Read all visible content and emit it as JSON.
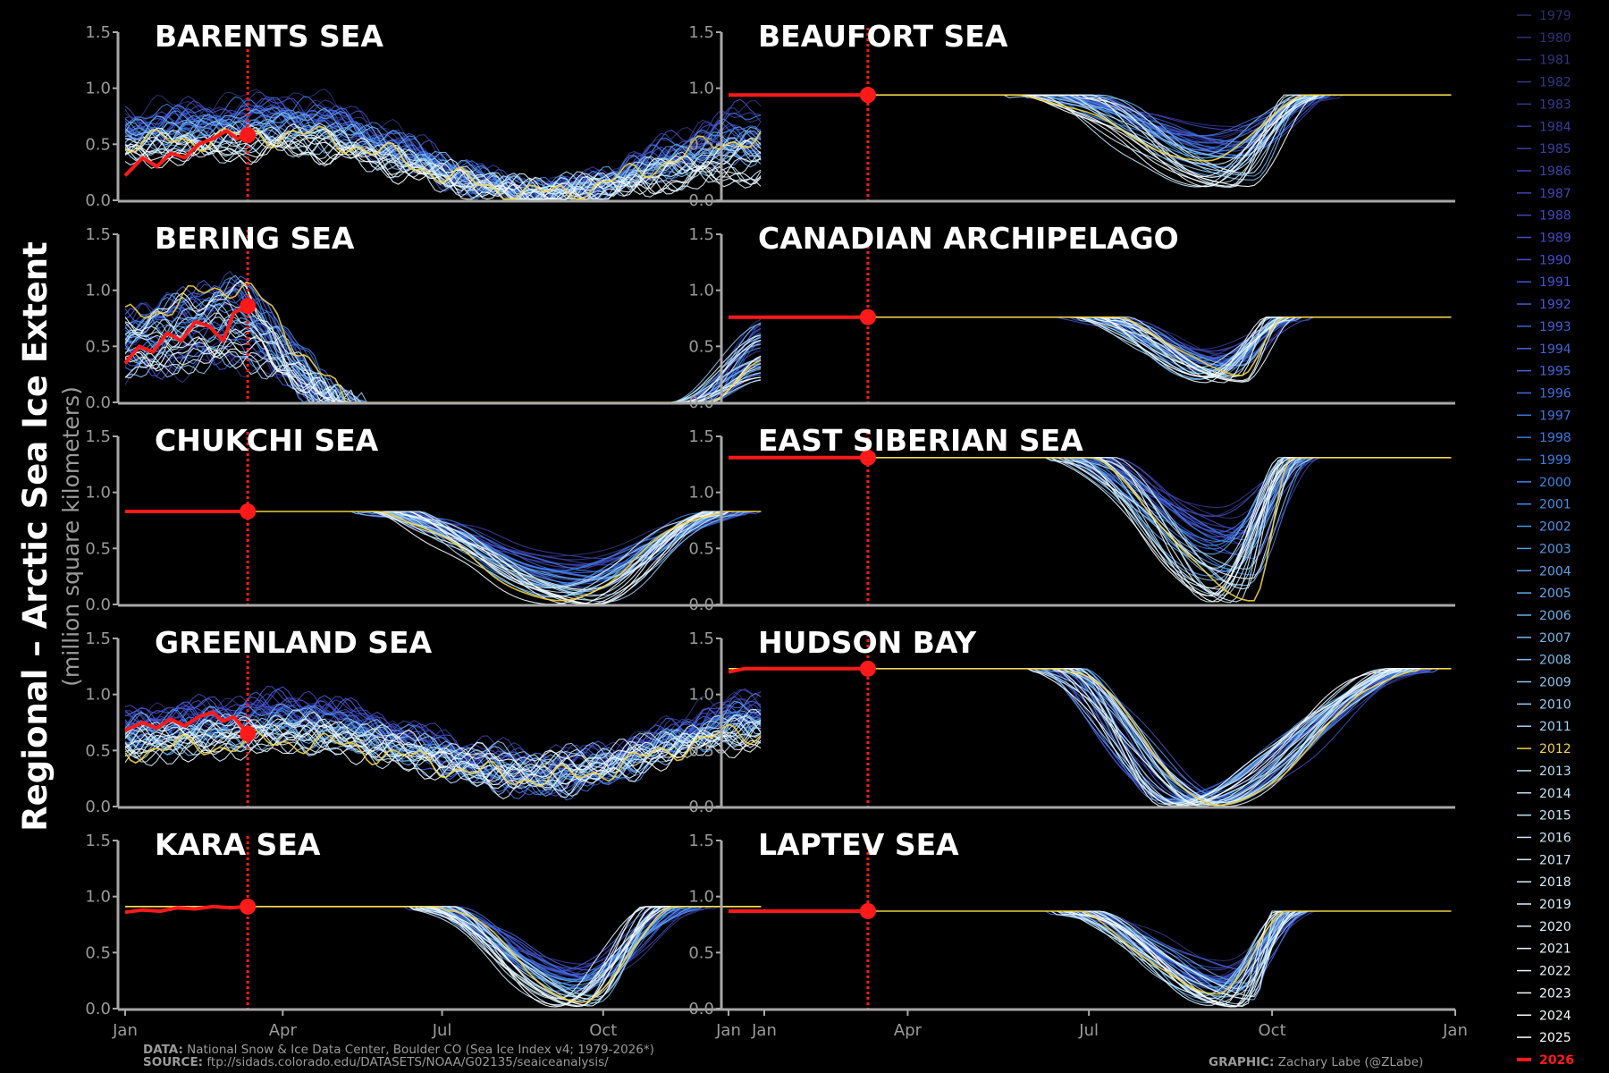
{
  "ylabel_main": "Regional – Arctic Sea Ice Extent",
  "ylabel_sub": "(million square kilometers)",
  "footer": {
    "data_label": "DATA:",
    "data_text": "National Snow & Ice Data Center, Boulder CO (Sea Ice Index v4; 1979-2026*)",
    "source_label": "SOURCE:",
    "source_text": "ftp://sidads.colorado.edu/DATASETS/NOAA/G02135/seaiceanalysis/",
    "graphic_label": "GRAPHIC:",
    "graphic_text": "Zachary Labe (@ZLabe)"
  },
  "colors": {
    "background": "#000000",
    "axis": "#a8a8a8",
    "highlight_2012": "#f2d33b",
    "current_2026": "#ff1a1a",
    "early_years": "#3a3a8c",
    "mid_years": "#3f7fe0",
    "late_years": "#ffffff"
  },
  "chart_data": {
    "type": "line",
    "x_ticks": [
      "Jan",
      "Apr",
      "Jul",
      "Oct",
      "Jan"
    ],
    "y_ticks": [
      "0.0",
      "0.5",
      "1.0",
      "1.5"
    ],
    "ylim": [
      0,
      1.5
    ],
    "xlim_days": [
      0,
      365
    ],
    "current_day": 70,
    "current_year": "2026",
    "years": [
      "1979",
      "1980",
      "1981",
      "1982",
      "1983",
      "1984",
      "1985",
      "1986",
      "1987",
      "1988",
      "1989",
      "1990",
      "1991",
      "1992",
      "1993",
      "1994",
      "1995",
      "1996",
      "1997",
      "1998",
      "1999",
      "2000",
      "2001",
      "2002",
      "2003",
      "2004",
      "2005",
      "2006",
      "2007",
      "2008",
      "2009",
      "2010",
      "2011",
      "2012",
      "2013",
      "2014",
      "2015",
      "2016",
      "2017",
      "2018",
      "2019",
      "2020",
      "2021",
      "2022",
      "2023",
      "2024",
      "2025",
      "2026"
    ],
    "panels": [
      {
        "title": "BARENTS SEA",
        "profile": {
          "type": "wave",
          "winter": [
            0.45,
            1.0
          ],
          "summer": [
            0.02,
            0.12
          ],
          "min_day": [
            225,
            250
          ],
          "fall_end": [
            0.2,
            0.9
          ]
        },
        "current": [
          [
            0,
            0.22
          ],
          [
            10,
            0.38
          ],
          [
            18,
            0.3
          ],
          [
            26,
            0.42
          ],
          [
            34,
            0.38
          ],
          [
            42,
            0.5
          ],
          [
            50,
            0.55
          ],
          [
            58,
            0.62
          ],
          [
            64,
            0.55
          ],
          [
            70,
            0.58
          ]
        ]
      },
      {
        "title": "BEAUFORT SEA",
        "profile": {
          "type": "plateau",
          "max": 0.94,
          "melt_start": [
            140,
            185
          ],
          "min": [
            0.12,
            0.75
          ],
          "min_day": [
            235,
            265
          ],
          "refreeze_end": [
            280,
            310
          ]
        },
        "current": [
          [
            0,
            0.94
          ],
          [
            70,
            0.94
          ]
        ]
      },
      {
        "title": "BERING SEA",
        "profile": {
          "type": "bering",
          "winter": [
            0.35,
            1.1
          ],
          "clear_day": [
            115,
            140
          ],
          "return_day": [
            310,
            335
          ],
          "end": [
            0.2,
            0.75
          ]
        },
        "current": [
          [
            0,
            0.35
          ],
          [
            8,
            0.5
          ],
          [
            16,
            0.45
          ],
          [
            24,
            0.62
          ],
          [
            32,
            0.55
          ],
          [
            40,
            0.72
          ],
          [
            48,
            0.68
          ],
          [
            56,
            0.55
          ],
          [
            62,
            0.8
          ],
          [
            70,
            0.86
          ]
        ]
      },
      {
        "title": "CANADIAN ARCHIPELAGO",
        "profile": {
          "type": "plateau",
          "max": 0.76,
          "melt_start": [
            165,
            195
          ],
          "min": [
            0.18,
            0.5
          ],
          "min_day": [
            235,
            260
          ],
          "refreeze_end": [
            270,
            295
          ]
        },
        "current": [
          [
            0,
            0.76
          ],
          [
            70,
            0.76
          ]
        ]
      },
      {
        "title": "CHUKCHI SEA",
        "profile": {
          "type": "plateau",
          "max": 0.83,
          "melt_start": [
            130,
            160
          ],
          "min": [
            0.0,
            0.45
          ],
          "min_day": [
            240,
            275
          ],
          "refreeze_end": [
            330,
            365
          ]
        },
        "current": [
          [
            0,
            0.83
          ],
          [
            70,
            0.83
          ]
        ]
      },
      {
        "title": "EAST SIBERIAN SEA",
        "profile": {
          "type": "plateau",
          "max": 1.31,
          "melt_start": [
            160,
            190
          ],
          "min": [
            0.02,
            0.95
          ],
          "min_day": [
            240,
            265
          ],
          "refreeze_end": [
            275,
            300
          ]
        },
        "current": [
          [
            0,
            1.31
          ],
          [
            70,
            1.31
          ]
        ]
      },
      {
        "title": "GREENLAND SEA",
        "profile": {
          "type": "wave",
          "winter": [
            0.55,
            1.05
          ],
          "summer": [
            0.15,
            0.45
          ],
          "min_day": [
            230,
            255
          ],
          "fall_end": [
            0.55,
            1.05
          ]
        },
        "current": [
          [
            0,
            0.68
          ],
          [
            10,
            0.75
          ],
          [
            18,
            0.7
          ],
          [
            26,
            0.78
          ],
          [
            34,
            0.72
          ],
          [
            42,
            0.8
          ],
          [
            50,
            0.84
          ],
          [
            56,
            0.76
          ],
          [
            62,
            0.8
          ],
          [
            70,
            0.65
          ]
        ]
      },
      {
        "title": "HUDSON BAY",
        "profile": {
          "type": "plateau",
          "max": 1.23,
          "melt_start": [
            150,
            175
          ],
          "min": [
            0.0,
            0.1
          ],
          "min_day": [
            215,
            255
          ],
          "refreeze_end": [
            330,
            360
          ]
        },
        "current": [
          [
            0,
            1.2
          ],
          [
            8,
            1.23
          ],
          [
            70,
            1.23
          ]
        ]
      },
      {
        "title": "KARA SEA",
        "profile": {
          "type": "plateau",
          "max": 0.91,
          "melt_start": [
            160,
            185
          ],
          "min": [
            0.02,
            0.45
          ],
          "min_day": [
            245,
            270
          ],
          "refreeze_end": [
            290,
            340
          ]
        },
        "current": [
          [
            0,
            0.86
          ],
          [
            10,
            0.88
          ],
          [
            20,
            0.87
          ],
          [
            30,
            0.9
          ],
          [
            40,
            0.89
          ],
          [
            50,
            0.91
          ],
          [
            60,
            0.9
          ],
          [
            70,
            0.91
          ]
        ]
      },
      {
        "title": "LAPTEV SEA",
        "profile": {
          "type": "plateau",
          "max": 0.87,
          "melt_start": [
            160,
            180
          ],
          "min": [
            0.02,
            0.45
          ],
          "min_day": [
            240,
            265
          ],
          "refreeze_end": [
            270,
            300
          ]
        },
        "current": [
          [
            0,
            0.87
          ],
          [
            70,
            0.87
          ]
        ]
      }
    ]
  }
}
